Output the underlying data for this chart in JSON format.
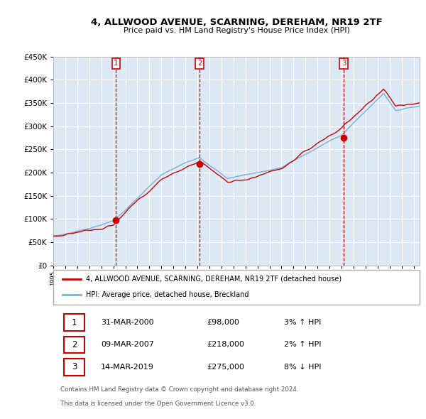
{
  "title": "4, ALLWOOD AVENUE, SCARNING, DEREHAM, NR19 2TF",
  "subtitle": "Price paid vs. HM Land Registry's House Price Index (HPI)",
  "legend_line1": "4, ALLWOOD AVENUE, SCARNING, DEREHAM, NR19 2TF (detached house)",
  "legend_line2": "HPI: Average price, detached house, Breckland",
  "footer1": "Contains HM Land Registry data © Crown copyright and database right 2024.",
  "footer2": "This data is licensed under the Open Government Licence v3.0.",
  "transactions": [
    {
      "num": 1,
      "date": "31-MAR-2000",
      "price": "£98,000",
      "hpi": "3% ↑ HPI",
      "year": 2000.23,
      "y_val": 98000
    },
    {
      "num": 2,
      "date": "09-MAR-2007",
      "price": "£218,000",
      "hpi": "2% ↑ HPI",
      "year": 2007.19,
      "y_val": 218000
    },
    {
      "num": 3,
      "date": "14-MAR-2019",
      "price": "£275,000",
      "hpi": "8% ↓ HPI",
      "year": 2019.19,
      "y_val": 275000
    }
  ],
  "plot_bg_color": "#dce9f5",
  "red_line_color": "#cc0000",
  "blue_line_color": "#7bafd4",
  "grid_color": "#ffffff",
  "dashed_vline_color": "#cc0000",
  "ylim": [
    0,
    450000
  ],
  "yticks": [
    0,
    50000,
    100000,
    150000,
    200000,
    250000,
    300000,
    350000,
    400000,
    450000
  ],
  "xlim_start": 1995.0,
  "xlim_end": 2025.5
}
